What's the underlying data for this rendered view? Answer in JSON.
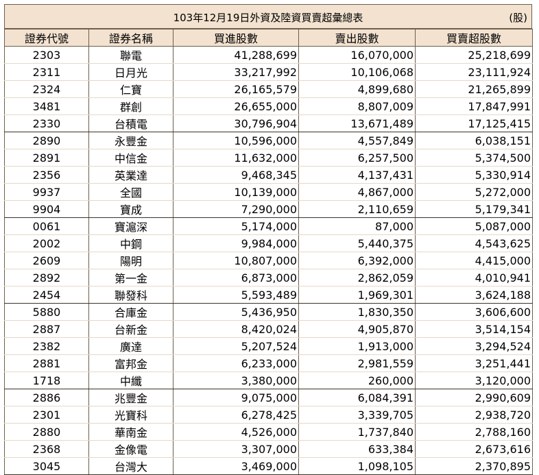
{
  "header": {
    "title": "103年12月19日外資及陸資買賣超彙總表",
    "unit": "(股)"
  },
  "columns": [
    "證券代號",
    "證券名稱",
    "買進股數",
    "賣出股數",
    "買賣超股數"
  ],
  "rows": [
    [
      "2303",
      "聯電",
      "41,288,699",
      "16,070,000",
      "25,218,699"
    ],
    [
      "2311",
      "日月光",
      "33,217,992",
      "10,106,068",
      "23,111,924"
    ],
    [
      "2324",
      "仁寶",
      "26,165,579",
      "4,899,680",
      "21,265,899"
    ],
    [
      "3481",
      "群創",
      "26,655,000",
      "8,807,009",
      "17,847,991"
    ],
    [
      "2330",
      "台積電",
      "30,796,904",
      "13,671,489",
      "17,125,415"
    ],
    [
      "2890",
      "永豐金",
      "10,596,000",
      "4,557,849",
      "6,038,151"
    ],
    [
      "2891",
      "中信金",
      "11,632,000",
      "6,257,500",
      "5,374,500"
    ],
    [
      "2356",
      "英業達",
      "9,468,345",
      "4,137,431",
      "5,330,914"
    ],
    [
      "9937",
      "全國",
      "10,139,000",
      "4,867,000",
      "5,272,000"
    ],
    [
      "9904",
      "寶成",
      "7,290,000",
      "2,110,659",
      "5,179,341"
    ],
    [
      "0061",
      "寶滬深",
      "5,174,000",
      "87,000",
      "5,087,000"
    ],
    [
      "2002",
      "中鋼",
      "9,984,000",
      "5,440,375",
      "4,543,625"
    ],
    [
      "2609",
      "陽明",
      "10,807,000",
      "6,392,000",
      "4,415,000"
    ],
    [
      "2892",
      "第一金",
      "6,873,000",
      "2,862,059",
      "4,010,941"
    ],
    [
      "2454",
      "聯發科",
      "5,593,489",
      "1,969,301",
      "3,624,188"
    ],
    [
      "5880",
      "合庫金",
      "5,436,950",
      "1,830,350",
      "3,606,600"
    ],
    [
      "2887",
      "台新金",
      "8,420,024",
      "4,905,870",
      "3,514,154"
    ],
    [
      "2382",
      "廣達",
      "5,207,524",
      "1,913,000",
      "3,294,524"
    ],
    [
      "2881",
      "富邦金",
      "6,233,000",
      "2,981,559",
      "3,251,441"
    ],
    [
      "1718",
      "中纖",
      "3,380,000",
      "260,000",
      "3,120,000"
    ],
    [
      "2886",
      "兆豐金",
      "9,075,000",
      "6,084,391",
      "2,990,609"
    ],
    [
      "2301",
      "光寶科",
      "6,278,425",
      "3,339,705",
      "2,938,720"
    ],
    [
      "2880",
      "華南金",
      "4,526,000",
      "1,737,840",
      "2,788,160"
    ],
    [
      "2368",
      "金像電",
      "3,307,000",
      "633,384",
      "2,673,616"
    ],
    [
      "3045",
      "台灣大",
      "3,469,000",
      "1,098,105",
      "2,370,895"
    ]
  ]
}
